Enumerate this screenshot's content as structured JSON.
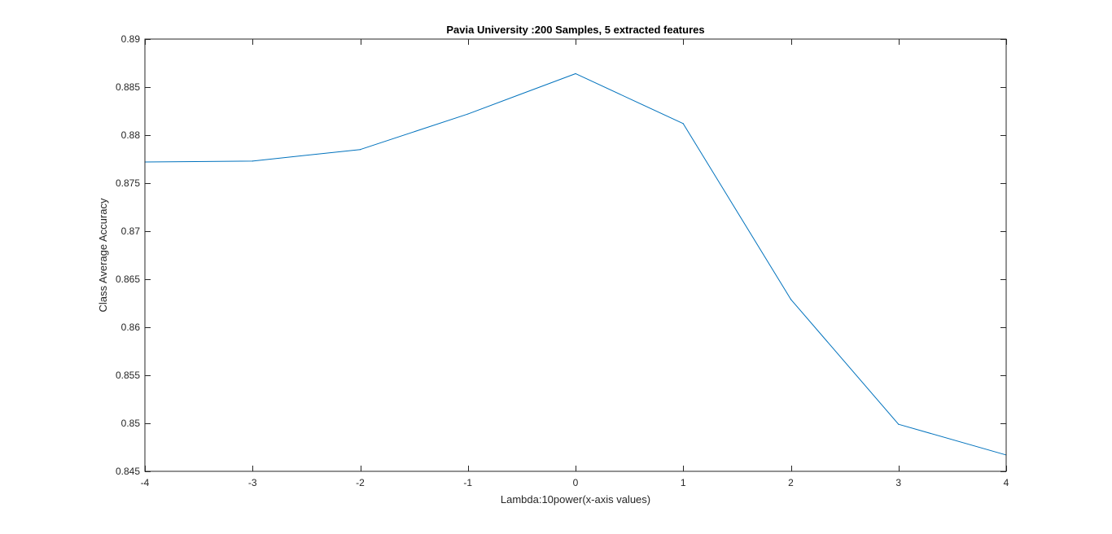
{
  "chart_data": {
    "type": "line",
    "title": "Pavia University :200 Samples, 5 extracted features",
    "xlabel": "Lambda:10power(x-axis values)",
    "ylabel": "Class Average Accuracy",
    "xlim": [
      -4,
      4
    ],
    "ylim": [
      0.845,
      0.89
    ],
    "xticks": [
      -4,
      -3,
      -2,
      -1,
      0,
      1,
      2,
      3,
      4
    ],
    "xtick_labels": [
      "-4",
      "-3",
      "-2",
      "-1",
      "0",
      "1",
      "2",
      "3",
      "4"
    ],
    "yticks": [
      0.845,
      0.85,
      0.855,
      0.86,
      0.865,
      0.87,
      0.875,
      0.88,
      0.885,
      0.89
    ],
    "ytick_labels": [
      "0.845",
      "0.85",
      "0.855",
      "0.86",
      "0.865",
      "0.87",
      "0.875",
      "0.88",
      "0.885",
      "0.89"
    ],
    "grid": false,
    "legend": false,
    "series": [
      {
        "x": [
          -4,
          -3,
          -2,
          -1,
          0,
          1,
          2,
          3,
          4
        ],
        "y": [
          0.8772,
          0.8773,
          0.8785,
          0.8822,
          0.8864,
          0.8812,
          0.8629,
          0.8499,
          0.8467
        ],
        "color": "#0072BD"
      }
    ],
    "axes_color": "#262626",
    "box_color": "#262626"
  }
}
